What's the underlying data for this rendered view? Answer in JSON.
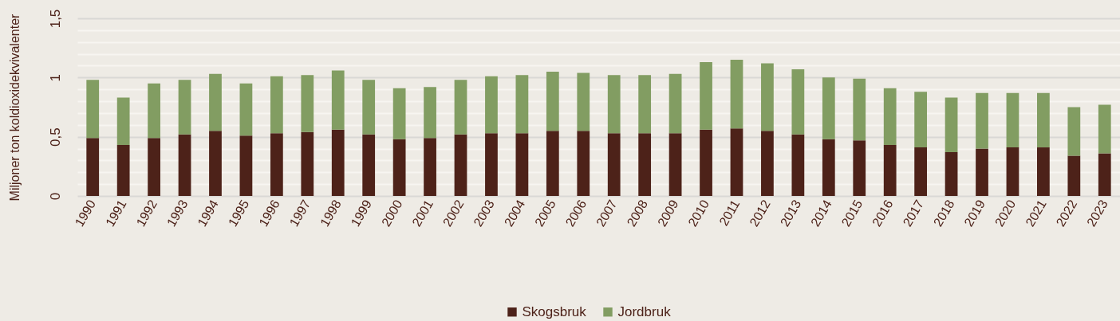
{
  "chart_data": {
    "type": "bar",
    "stacked": true,
    "ylabel": "Miljoner ton koldioxidekvivalenter",
    "categories": [
      "1990",
      "1991",
      "1992",
      "1993",
      "1994",
      "1995",
      "1996",
      "1997",
      "1998",
      "1999",
      "2000",
      "2001",
      "2002",
      "2003",
      "2004",
      "2005",
      "2006",
      "2007",
      "2008",
      "2009",
      "2010",
      "2011",
      "2012",
      "2013",
      "2014",
      "2015",
      "2016",
      "2017",
      "2018",
      "2019",
      "2020",
      "2021",
      "2022",
      "2023"
    ],
    "series": [
      {
        "name": "Skogsbruk",
        "color": "#4d2219",
        "values": [
          0.49,
          0.43,
          0.49,
          0.52,
          0.55,
          0.51,
          0.53,
          0.54,
          0.56,
          0.52,
          0.48,
          0.49,
          0.52,
          0.53,
          0.53,
          0.55,
          0.55,
          0.53,
          0.53,
          0.53,
          0.56,
          0.57,
          0.55,
          0.52,
          0.48,
          0.47,
          0.43,
          0.41,
          0.37,
          0.4,
          0.41,
          0.41,
          0.34,
          0.36
        ]
      },
      {
        "name": "Jordbruk",
        "color": "#829d62",
        "values": [
          0.49,
          0.4,
          0.46,
          0.46,
          0.48,
          0.44,
          0.48,
          0.48,
          0.5,
          0.46,
          0.43,
          0.43,
          0.46,
          0.48,
          0.49,
          0.5,
          0.49,
          0.49,
          0.49,
          0.5,
          0.57,
          0.58,
          0.57,
          0.55,
          0.52,
          0.52,
          0.48,
          0.47,
          0.46,
          0.47,
          0.46,
          0.46,
          0.41,
          0.41
        ]
      }
    ],
    "ylim": [
      0,
      1.5
    ],
    "yticks": [
      0,
      {
        "value": 0.1,
        "label": null
      },
      {
        "value": 0.2,
        "label": null
      },
      {
        "value": 0.3,
        "label": null
      },
      {
        "value": 0.4,
        "label": null
      },
      {
        "value": 0.5,
        "label": "0,5"
      },
      {
        "value": 0.6,
        "label": null
      },
      {
        "value": 0.7,
        "label": null
      },
      {
        "value": 0.8,
        "label": null
      },
      {
        "value": 0.9,
        "label": null
      },
      1,
      {
        "value": 1.1,
        "label": null
      },
      {
        "value": 1.2,
        "label": null
      },
      {
        "value": 1.3,
        "label": null
      },
      {
        "value": 1.4,
        "label": null
      },
      {
        "value": 1.5,
        "label": "1,5"
      }
    ],
    "grid": "y",
    "legend": "bottom"
  }
}
